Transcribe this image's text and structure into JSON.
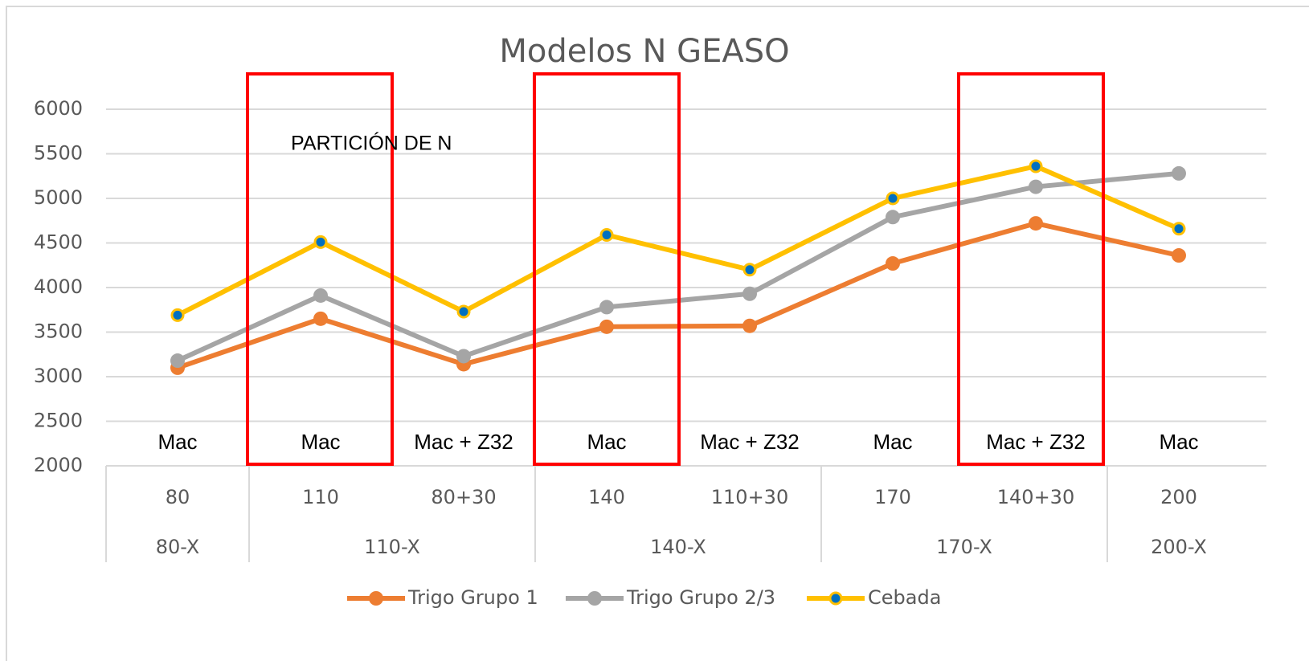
{
  "chart_data": {
    "type": "line",
    "title": "Modelos N GEASO",
    "annotation": "PARTICIÓN DE N",
    "treatments": [
      "Mac",
      "Mac",
      "Mac + Z32",
      "Mac",
      "Mac + Z32",
      "Mac",
      "Mac + Z32",
      "Mac"
    ],
    "categories": [
      "80",
      "110",
      "80+30",
      "140",
      "110+30",
      "170",
      "140+30",
      "200"
    ],
    "groups": [
      "80-X",
      "110-X",
      null,
      "140-X",
      null,
      "170-X",
      null,
      "200-X"
    ],
    "series": [
      {
        "name": "Trigo Grupo 1",
        "color": "#ed7d31",
        "values": [
          3100,
          3650,
          3140,
          3560,
          3570,
          4270,
          4720,
          4360
        ]
      },
      {
        "name": "Trigo Grupo 2/3",
        "color": "#a5a5a5",
        "values": [
          3180,
          3910,
          3230,
          3780,
          3930,
          4790,
          5130,
          5280
        ]
      },
      {
        "name": "Cebada",
        "color": "#ffc000",
        "marker_color": "#0070c0",
        "values": [
          3690,
          4510,
          3730,
          4590,
          4200,
          5000,
          5360,
          4660
        ]
      }
    ],
    "ylim": [
      2000,
      6000
    ],
    "yticks": [
      2000,
      2500,
      3000,
      3500,
      4000,
      4500,
      5000,
      5500,
      6000
    ],
    "grid": true,
    "legend": "bottom"
  }
}
